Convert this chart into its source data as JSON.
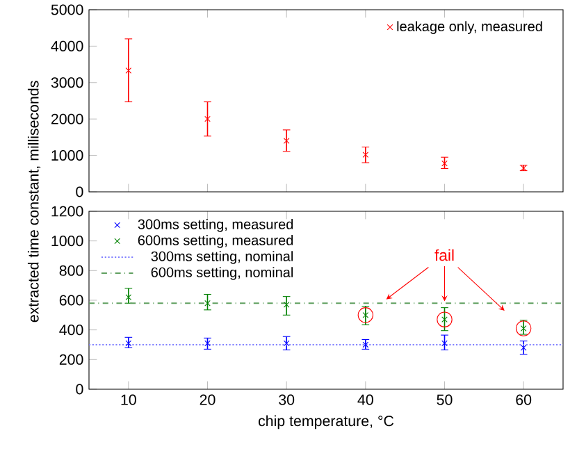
{
  "chart_data": [
    {
      "type": "scatter",
      "x": [
        10,
        20,
        30,
        40,
        50,
        60
      ],
      "xlim": [
        5,
        65
      ],
      "xticks": [
        10,
        20,
        30,
        40,
        50,
        60
      ],
      "ylim": [
        0,
        5000
      ],
      "yticks": [
        0,
        1000,
        2000,
        3000,
        4000,
        5000
      ],
      "tick_labels": "y",
      "legend": "top right",
      "series": [
        {
          "name": "leakage only, measured",
          "color": "#ff0000",
          "marker": "cross",
          "values": [
            3330,
            2000,
            1400,
            1020,
            780,
            650
          ],
          "errors": [
            [
              2470,
              4200
            ],
            [
              1530,
              2470
            ],
            [
              1110,
              1700
            ],
            [
              800,
              1230
            ],
            [
              640,
              950
            ],
            [
              580,
              730
            ]
          ]
        }
      ]
    },
    {
      "type": "scatter",
      "x": [
        10,
        20,
        30,
        40,
        50,
        60
      ],
      "xlim": [
        5,
        65
      ],
      "xticks": [
        10,
        20,
        30,
        40,
        50,
        60
      ],
      "ylim": [
        0,
        1200
      ],
      "yticks": [
        0,
        200,
        400,
        600,
        800,
        1000,
        1200
      ],
      "xlabel": "chip temperature, °C",
      "ylabel": "extracted time constant, milliseconds",
      "legend": "top left",
      "annotations": [
        {
          "text": "fail",
          "x": 50,
          "y": 580
        }
      ],
      "series": [
        {
          "name": "300ms setting, measured",
          "color": "#0000ff",
          "marker": "cross",
          "values": [
            310,
            310,
            310,
            300,
            310,
            280
          ],
          "errors": [
            [
              280,
              350
            ],
            [
              270,
              345
            ],
            [
              265,
              355
            ],
            [
              270,
              335
            ],
            [
              265,
              365
            ],
            [
              235,
              325
            ]
          ]
        },
        {
          "name": "600ms setting, measured",
          "color": "#008000",
          "marker": "cross",
          "values": [
            620,
            580,
            570,
            500,
            470,
            410
          ],
          "errors": [
            [
              580,
              680
            ],
            [
              535,
              640
            ],
            [
              500,
              625
            ],
            [
              435,
              560
            ],
            [
              395,
              550
            ],
            [
              370,
              465
            ]
          ]
        },
        {
          "name": "300ms setting, nominal",
          "type": "line",
          "line_style": "dotted",
          "color": "#8080ff",
          "x": [
            5,
            65
          ],
          "values": [
            300,
            300
          ]
        },
        {
          "name": "600ms setting, nominal",
          "type": "line",
          "line_style": "dashed",
          "color": "#60a060",
          "x": [
            5,
            65
          ],
          "values": [
            580,
            580
          ]
        },
        {
          "color": "#ff0000",
          "marker": "circle",
          "x": [
            40,
            50,
            60
          ],
          "values": [
            500,
            470,
            410
          ]
        }
      ]
    }
  ]
}
